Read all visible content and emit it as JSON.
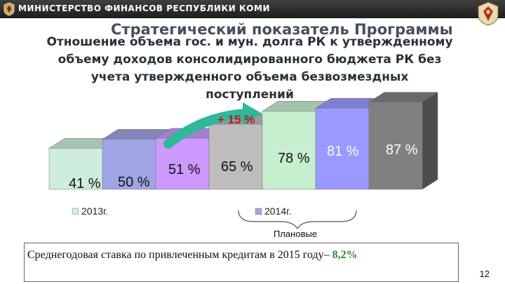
{
  "header": {
    "org_name": "МИНИСТЕРСТВО ФИНАНСОВ РЕСПУБЛИКИ КОМИ"
  },
  "slide": {
    "strategic_title": "Стратегический показатель Программы",
    "title_lines": [
      "Отношение объема гос. и мун. долга РК к утвержденному",
      "объему доходов консолидированного бюджета РК без",
      "учета утвержденного объема безвозмездных",
      "поступлений"
    ],
    "planned_label": "Плановые",
    "note_text": "Среднегодовая ставка  по привлеченным кредитам в 2015 году– ",
    "note_rate": "8,2%",
    "page_number": "12"
  },
  "colors": {
    "bar_2013": "#cdeedd",
    "bar_2014": "#9fa4e4",
    "bar_2015": "#cc99ff",
    "bar_2016": "#bdbdbd",
    "bar_2017": "#c6efce",
    "bar_2018": "#9999ff",
    "bar_2019": "#808080",
    "arrow": "#2fb89a"
  },
  "chart_data": {
    "type": "bar",
    "series": [
      {
        "name": "2013г.",
        "values": [
          41,
          50
        ]
      },
      {
        "name": "2014г.",
        "values": [
          51,
          65,
          78,
          81,
          87
        ]
      }
    ],
    "values": [
      41,
      50,
      51,
      65,
      78,
      81,
      87
    ],
    "value_labels": [
      "41 %",
      "50 %",
      "51 %",
      "65 %",
      "78 %",
      "81 %",
      "87 %"
    ],
    "annotation": "+ 15 %",
    "legend": [
      "2013г.",
      "2014г."
    ],
    "ylim": [
      0,
      100
    ]
  }
}
